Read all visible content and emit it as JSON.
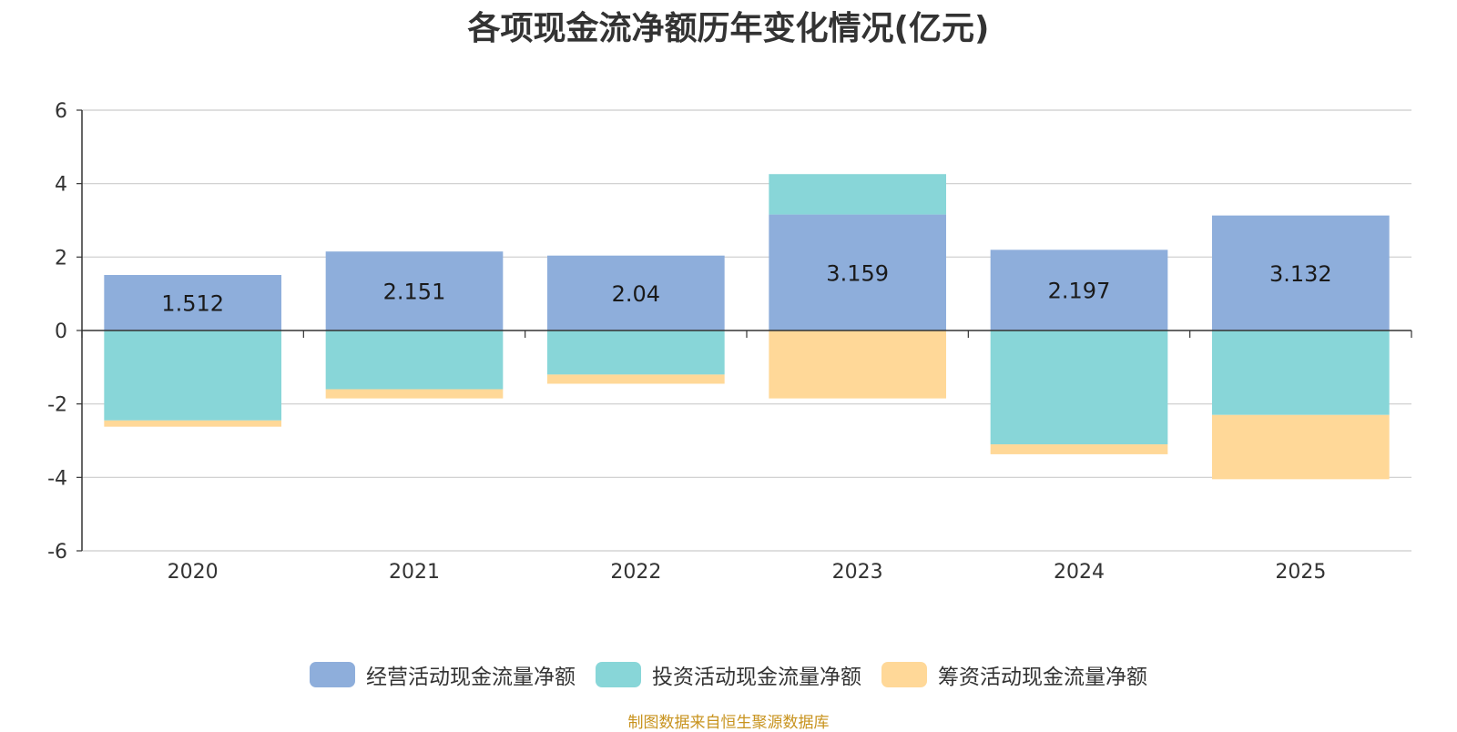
{
  "chart_data": {
    "type": "bar",
    "stacked": true,
    "title": "各项现金流净额历年变化情况(亿元)",
    "xlabel": "",
    "ylabel": "",
    "categories": [
      "2020",
      "2021",
      "2022",
      "2023",
      "2024",
      "2025"
    ],
    "ylim": [
      -6,
      6
    ],
    "yticks": [
      6,
      4,
      2,
      0,
      -2,
      -4,
      -6
    ],
    "grid": true,
    "legend_position": "bottom",
    "series": [
      {
        "name": "经营活动现金流量净额",
        "color": "#8eaedb",
        "values": [
          1.512,
          2.151,
          2.04,
          3.159,
          2.197,
          3.132
        ],
        "data_labels": [
          "1.512",
          "2.151",
          "2.04",
          "3.159",
          "2.197",
          "3.132"
        ]
      },
      {
        "name": "投资活动现金流量净额",
        "color": "#88d6d8",
        "values": [
          -2.45,
          -1.6,
          -1.2,
          1.1,
          -3.1,
          -2.3
        ]
      },
      {
        "name": "筹资活动现金流量净额",
        "color": "#ffd898",
        "values": [
          -0.17,
          -0.25,
          -0.25,
          -1.85,
          -0.27,
          -1.75
        ]
      }
    ]
  },
  "source_note": "制图数据来自恒生聚源数据库"
}
